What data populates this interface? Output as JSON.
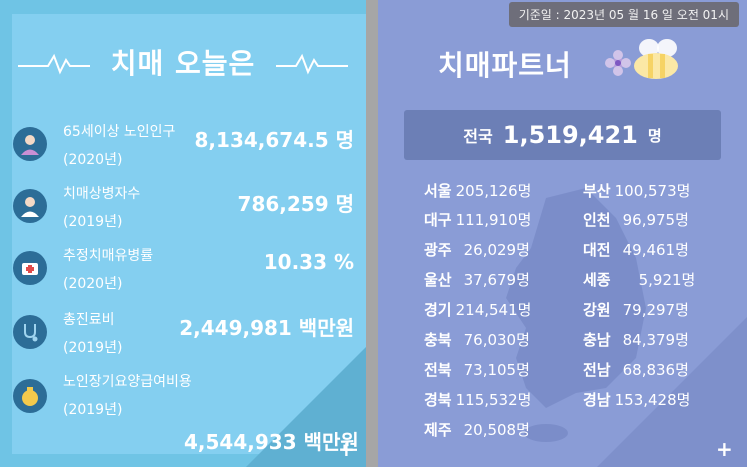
{
  "left": {
    "title": "치매 오늘은",
    "plus": "+",
    "stats": [
      {
        "label1": "65세이상 노인인구",
        "label2": "(2020년)",
        "value": "8,134,674.5 명",
        "icon": "elderly-person-icon"
      },
      {
        "label1": "치매상병자수",
        "label2": "(2019년)",
        "value": "786,259 명",
        "icon": "patient-icon"
      },
      {
        "label1": "추정치매유병률",
        "label2": "(2020년)",
        "value": "10.33 %",
        "icon": "medical-kit-icon"
      },
      {
        "label1": "총진료비",
        "label2": "(2019년)",
        "value": "2,449,981 백만원",
        "icon": "stethoscope-icon"
      },
      {
        "label1": "노인장기요양급여비용",
        "label2": "(2019년)",
        "value": "4,544,933 백만원",
        "icon": "money-bag-icon"
      }
    ]
  },
  "right": {
    "date": "기준일 : 2023년 05 월 16 일 오전 01시",
    "title": "치매파트너",
    "national": {
      "label": "전국",
      "value": "1,519,421",
      "unit": "명"
    },
    "plus": "+",
    "regions": [
      {
        "name": "서울",
        "value": "205,126명"
      },
      {
        "name": "부산",
        "value": "100,573명"
      },
      {
        "name": "대구",
        "value": "111,910명"
      },
      {
        "name": "인천",
        "value": "96,975명"
      },
      {
        "name": "광주",
        "value": "26,029명"
      },
      {
        "name": "대전",
        "value": "49,461명"
      },
      {
        "name": "울산",
        "value": "37,679명"
      },
      {
        "name": "세종",
        "value": "5,921명"
      },
      {
        "name": "경기",
        "value": "214,541명"
      },
      {
        "name": "강원",
        "value": "79,297명"
      },
      {
        "name": "충북",
        "value": "76,030명"
      },
      {
        "name": "충남",
        "value": "84,379명"
      },
      {
        "name": "전북",
        "value": "73,105명"
      },
      {
        "name": "전남",
        "value": "68,836명"
      },
      {
        "name": "경북",
        "value": "115,532명"
      },
      {
        "name": "경남",
        "value": "153,428명"
      },
      {
        "name": "제주",
        "value": "20,508명"
      }
    ]
  },
  "colors": {
    "left_bg": "#84cff0",
    "right_bg": "#8a9cd6",
    "icon_bg": "#2c6d97"
  }
}
